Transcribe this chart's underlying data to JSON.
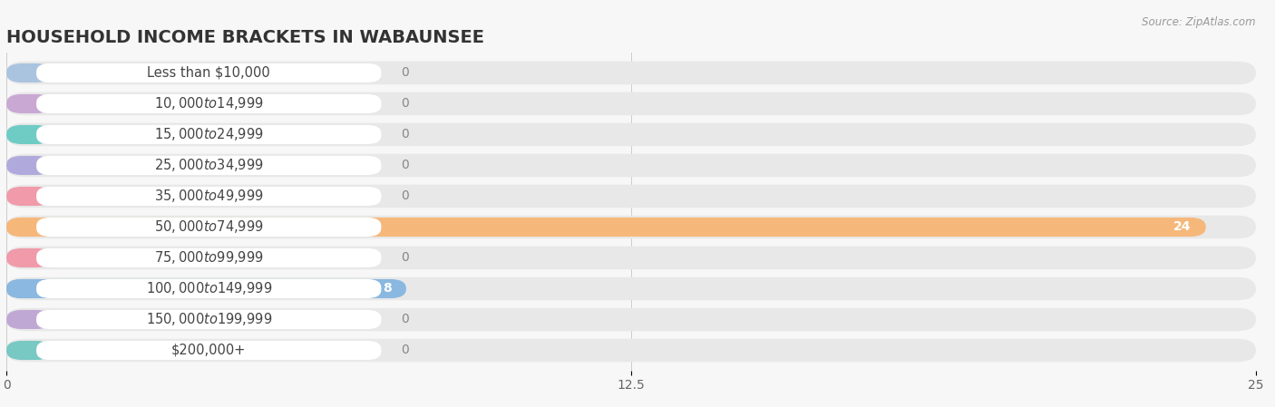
{
  "title": "HOUSEHOLD INCOME BRACKETS IN WABAUNSEE",
  "source": "Source: ZipAtlas.com",
  "categories": [
    "Less than $10,000",
    "$10,000 to $14,999",
    "$15,000 to $24,999",
    "$25,000 to $34,999",
    "$35,000 to $49,999",
    "$50,000 to $74,999",
    "$75,000 to $99,999",
    "$100,000 to $149,999",
    "$150,000 to $199,999",
    "$200,000+"
  ],
  "values": [
    0,
    0,
    0,
    0,
    0,
    24,
    0,
    8,
    0,
    0
  ],
  "bar_colors": [
    "#aac4e0",
    "#c9a8d4",
    "#6eccc5",
    "#b0aadc",
    "#f09aaa",
    "#f5b87a",
    "#f09aaa",
    "#8ab8e0",
    "#c0a8d4",
    "#78c8c4"
  ],
  "xlim": [
    0,
    25
  ],
  "xticks": [
    0,
    12.5,
    25
  ],
  "background_color": "#f7f7f7",
  "bar_bg_color": "#e8e8e8",
  "label_box_color": "#ffffff",
  "title_fontsize": 14,
  "label_fontsize": 10.5,
  "value_fontsize": 10,
  "value_inside_color": "#ffffff",
  "value_outside_color": "#888888"
}
